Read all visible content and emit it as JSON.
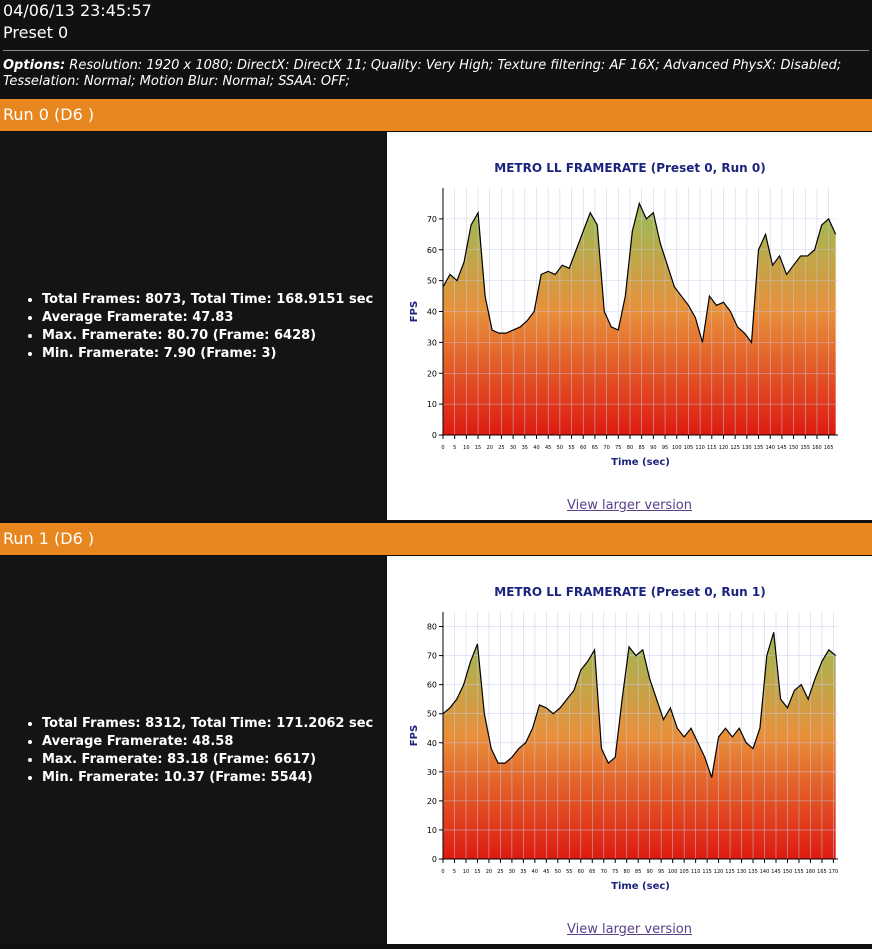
{
  "header": {
    "timestamp": "04/06/13 23:45:57",
    "preset": "Preset 0"
  },
  "options": {
    "label": "Options:",
    "text": "Resolution: 1920 x 1080; DirectX: DirectX 11; Quality: Very High; Texture filtering: AF 16X; Advanced PhysX: Disabled; Tesselation: Normal; Motion Blur: Normal; SSAA: OFF;"
  },
  "runs": [
    {
      "title": "Run 0 (D6 )",
      "stats": [
        "Total Frames: 8073, Total Time: 168.9151 sec",
        "Average Framerate: 47.83",
        "Max. Framerate: 80.70 (Frame: 6428)",
        "Min. Framerate: 7.90 (Frame: 3)"
      ],
      "link": "View larger version"
    },
    {
      "title": "Run 1 (D6 )",
      "stats": [
        "Total Frames: 8312, Total Time: 171.2062 sec",
        "Average Framerate: 48.58",
        "Max. Framerate: 83.18 (Frame: 6617)",
        "Min. Framerate: 10.37 (Frame: 5544)"
      ],
      "link": "View larger version"
    }
  ],
  "chart_data": [
    {
      "type": "line",
      "title": "METRO LL FRAMERATE (Preset 0, Run 0)",
      "x_label": "Time (sec)",
      "y_label": "FPS",
      "color": "#000000",
      "area_colors": [
        "#dd1a10",
        "#e8903a",
        "#8cc45c"
      ],
      "grid": true,
      "x": [
        0,
        3,
        6,
        9,
        12,
        15,
        18,
        21,
        24,
        27,
        30,
        33,
        36,
        39,
        42,
        45,
        48,
        51,
        54,
        57,
        60,
        63,
        66,
        69,
        72,
        75,
        78,
        81,
        84,
        87,
        90,
        93,
        96,
        99,
        102,
        105,
        108,
        111,
        114,
        117,
        120,
        123,
        126,
        129,
        132,
        135,
        138,
        141,
        144,
        147,
        150,
        153,
        156,
        159,
        162,
        165,
        168
      ],
      "values": [
        48,
        52,
        50,
        56,
        68,
        72,
        45,
        34,
        33,
        33,
        34,
        35,
        37,
        40,
        52,
        53,
        52,
        55,
        54,
        60,
        66,
        72,
        68,
        40,
        35,
        34,
        45,
        66,
        75,
        70,
        72,
        62,
        55,
        48,
        45,
        42,
        38,
        30,
        45,
        42,
        43,
        40,
        35,
        33,
        30,
        60,
        65,
        55,
        58,
        52,
        55,
        58,
        58,
        60,
        68,
        70,
        65
      ],
      "xlim": [
        0,
        169
      ],
      "ylim": [
        0,
        80
      ],
      "xticks": [
        0,
        5,
        10,
        15,
        20,
        25,
        30,
        35,
        40,
        45,
        50,
        55,
        60,
        65,
        70,
        75,
        80,
        85,
        90,
        95,
        100,
        105,
        110,
        115,
        120,
        125,
        130,
        135,
        140,
        145,
        150,
        155,
        160,
        165
      ],
      "yticks": [
        0,
        10,
        20,
        30,
        40,
        50,
        60,
        70
      ]
    },
    {
      "type": "line",
      "title": "METRO LL FRAMERATE (Preset 0, Run 1)",
      "x_label": "Time (sec)",
      "y_label": "FPS",
      "color": "#000000",
      "area_colors": [
        "#dd1a10",
        "#e8903a",
        "#8cc45c"
      ],
      "grid": true,
      "x": [
        0,
        3,
        6,
        9,
        12,
        15,
        18,
        21,
        24,
        27,
        30,
        33,
        36,
        39,
        42,
        45,
        48,
        51,
        54,
        57,
        60,
        63,
        66,
        69,
        72,
        75,
        78,
        81,
        84,
        87,
        90,
        93,
        96,
        99,
        102,
        105,
        108,
        111,
        114,
        117,
        120,
        123,
        126,
        129,
        132,
        135,
        138,
        141,
        144,
        147,
        150,
        153,
        156,
        159,
        162,
        165,
        168,
        171
      ],
      "values": [
        50,
        52,
        55,
        60,
        68,
        74,
        50,
        38,
        33,
        33,
        35,
        38,
        40,
        45,
        53,
        52,
        50,
        52,
        55,
        58,
        65,
        68,
        72,
        38,
        33,
        35,
        55,
        73,
        70,
        72,
        62,
        55,
        48,
        52,
        45,
        42,
        45,
        40,
        35,
        28,
        42,
        45,
        42,
        45,
        40,
        38,
        45,
        70,
        78,
        55,
        52,
        58,
        60,
        55,
        62,
        68,
        72,
        70
      ],
      "xlim": [
        0,
        172
      ],
      "ylim": [
        0,
        85
      ],
      "xticks": [
        0,
        5,
        10,
        15,
        20,
        25,
        30,
        35,
        40,
        45,
        50,
        55,
        60,
        65,
        70,
        75,
        80,
        85,
        90,
        95,
        100,
        105,
        110,
        115,
        120,
        125,
        130,
        135,
        140,
        145,
        150,
        155,
        160,
        165,
        170
      ],
      "yticks": [
        0,
        10,
        20,
        30,
        40,
        50,
        60,
        70,
        80
      ]
    }
  ]
}
